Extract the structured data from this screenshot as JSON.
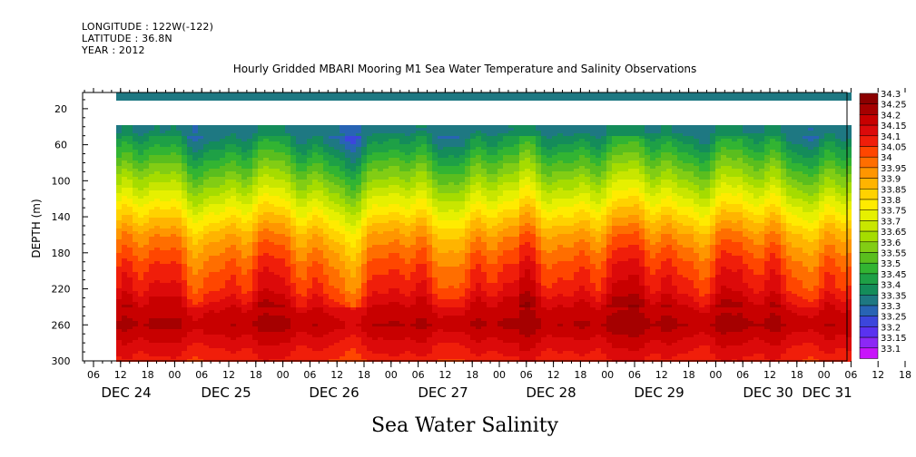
{
  "header": {
    "longitude": "LONGITUDE : 122W(-122)",
    "latitude": "LATITUDE : 36.8N",
    "year": "YEAR : 2012"
  },
  "chart_data": {
    "type": "heatmap",
    "title": "Hourly Gridded MBARI Mooring M1 Sea Water Temperature and Salinity Observations",
    "xlabel": "Sea Water Salinity",
    "ylabel": "DEPTH (m)",
    "y_axis": {
      "range": [
        300,
        2
      ],
      "inverted": true,
      "tick_labels": [
        "20",
        "60",
        "100",
        "140",
        "180",
        "220",
        "260",
        "300"
      ],
      "tick_values": [
        20,
        60,
        100,
        140,
        180,
        220,
        260,
        300
      ]
    },
    "x_axis": {
      "hour_tick_labels": [
        "06",
        "12",
        "18",
        "00",
        "06",
        "12",
        "18",
        "00",
        "06",
        "12",
        "18",
        "00",
        "06",
        "12",
        "18",
        "00",
        "06",
        "12",
        "18",
        "00",
        "06",
        "12",
        "18",
        "00",
        "06",
        "12",
        "18",
        "00",
        "06",
        "12",
        "18",
        "00"
      ],
      "day_labels": [
        "DEC 24",
        "DEC 25",
        "DEC 26",
        "DEC 27",
        "DEC 28",
        "DEC 29",
        "DEC 30",
        "DEC 31"
      ]
    },
    "colorbar": {
      "labels": [
        "34.3",
        "34.25",
        "34.2",
        "34.15",
        "34.1",
        "34.05",
        "34",
        "33.95",
        "33.9",
        "33.85",
        "33.8",
        "33.75",
        "33.7",
        "33.65",
        "33.6",
        "33.55",
        "33.5",
        "33.45",
        "33.4",
        "33.35",
        "33.3",
        "33.25",
        "33.2",
        "33.15",
        "33.1"
      ],
      "colors": [
        "#8b0000",
        "#a50000",
        "#c80000",
        "#dc0a0a",
        "#f01e0a",
        "#ff4600",
        "#ff6e00",
        "#ff9600",
        "#ffb400",
        "#ffd200",
        "#ffeb00",
        "#e6f000",
        "#c8e600",
        "#a5dc00",
        "#82cd14",
        "#5abe1e",
        "#32b432",
        "#1ea046",
        "#148c5a",
        "#1e7882",
        "#2864b4",
        "#3c46dc",
        "#5a32f0",
        "#8c28f5",
        "#c814fa"
      ]
    },
    "depth_profile": [
      {
        "depth": 10,
        "salinity": 33.4
      },
      {
        "depth": 45,
        "salinity": 33.38
      },
      {
        "depth": 60,
        "salinity": 33.45
      },
      {
        "depth": 80,
        "salinity": 33.55
      },
      {
        "depth": 100,
        "salinity": 33.65
      },
      {
        "depth": 120,
        "salinity": 33.75
      },
      {
        "depth": 140,
        "salinity": 33.85
      },
      {
        "depth": 160,
        "salinity": 33.95
      },
      {
        "depth": 180,
        "salinity": 34.02
      },
      {
        "depth": 200,
        "salinity": 34.08
      },
      {
        "depth": 220,
        "salinity": 34.12
      },
      {
        "depth": 240,
        "salinity": 34.2
      },
      {
        "depth": 260,
        "salinity": 34.25
      },
      {
        "depth": 280,
        "salinity": 34.18
      },
      {
        "depth": 300,
        "salinity": 34.12
      }
    ],
    "grid": false,
    "legend": "right"
  }
}
